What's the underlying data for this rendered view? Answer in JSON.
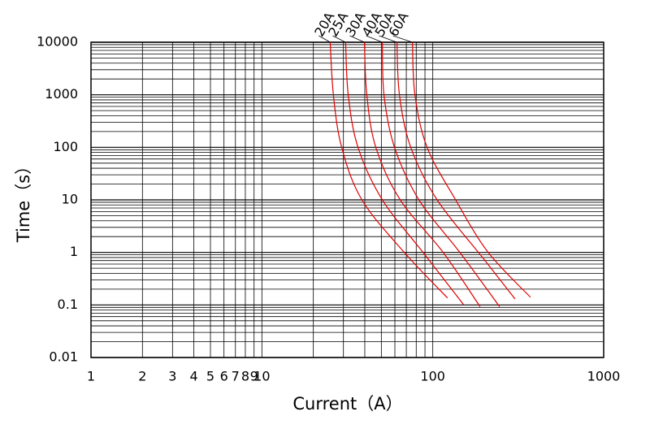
{
  "chart_data": {
    "type": "line",
    "x_label": "Current（A）",
    "y_label": "Time（s）",
    "xscale": "log",
    "yscale": "log",
    "xlim": [
      1,
      1000
    ],
    "ylim": [
      0.01,
      10000
    ],
    "xticks": [
      1,
      2,
      3,
      4,
      5,
      6,
      7,
      8,
      9,
      10,
      100,
      1000
    ],
    "x_gridlines": [
      20,
      30,
      40,
      50,
      60,
      70,
      80,
      90
    ],
    "yticks": [
      0.01,
      0.1,
      1,
      10,
      100,
      1000,
      10000
    ],
    "y_gridlines": [
      0.02,
      0.03,
      0.04,
      0.05,
      0.06,
      0.07,
      0.08,
      0.09,
      0.2,
      0.3,
      0.4,
      0.5,
      0.6,
      0.7,
      0.8,
      0.9,
      2,
      3,
      4,
      5,
      6,
      7,
      8,
      9,
      20,
      30,
      40,
      50,
      60,
      70,
      80,
      90,
      200,
      300,
      400,
      500,
      600,
      700,
      800,
      900,
      2000,
      3000,
      4000,
      5000,
      6000,
      7000,
      8000,
      9000
    ],
    "grid": true,
    "series": [
      {
        "name": "20A",
        "color": "#e00000",
        "x": [
          25.1,
          26.2,
          29.3,
          38.5,
          68.1,
          122
        ],
        "values": [
          10000,
          1000,
          100,
          10,
          1,
          0.136
        ]
      },
      {
        "name": "25A",
        "color": "#e00000",
        "x": [
          30.9,
          32.0,
          36.5,
          50.7,
          87.7,
          152
        ],
        "values": [
          10000,
          1000,
          100,
          10,
          1,
          0.1
        ]
      },
      {
        "name": "30A",
        "color": "#e00000",
        "x": [
          39.8,
          41.1,
          46.4,
          64.5,
          115,
          189
        ],
        "values": [
          10000,
          1000,
          100,
          10,
          1,
          0.093
        ]
      },
      {
        "name": "40A",
        "color": "#e00000",
        "x": [
          50.7,
          51.8,
          59.7,
          83.0,
          144,
          246
        ],
        "values": [
          10000,
          1000,
          100,
          10,
          1,
          0.093
        ]
      },
      {
        "name": "50A",
        "color": "#e00000",
        "x": [
          61.7,
          63.8,
          74.3,
          106,
          200,
          303
        ],
        "values": [
          10000,
          1000,
          100,
          10,
          0.73,
          0.13
        ]
      },
      {
        "name": "60A",
        "color": "#e00000",
        "x": [
          76.0,
          78.6,
          92.6,
          136,
          211,
          373
        ],
        "values": [
          10000,
          1000,
          100,
          10,
          1,
          0.14
        ]
      }
    ]
  }
}
